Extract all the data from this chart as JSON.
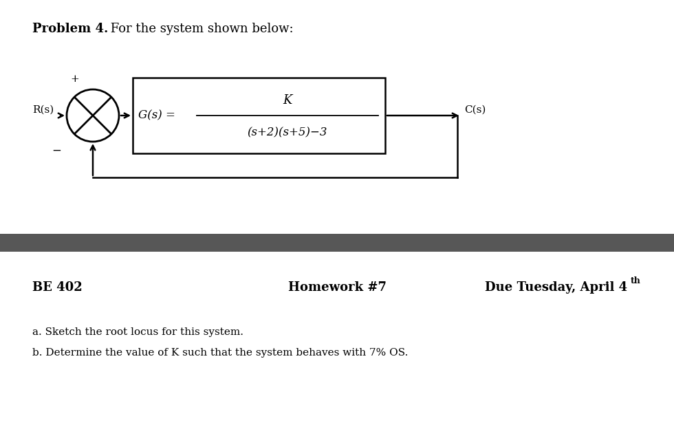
{
  "title_bold": "Problem 4.",
  "title_normal": " For the system shown below:",
  "title_fontsize": 13,
  "bg_color": "#ffffff",
  "separator_color": "#575757",
  "footer_left": "BE 402",
  "footer_center": "Homework #7",
  "footer_right_main": "Due Tuesday, April 4",
  "footer_right_super": "th",
  "footer_fontsize": 13,
  "body_a": "a. Sketch the root locus for this system.",
  "body_b": "b. Determine the value of K such that the system behaves with 7% OS.",
  "body_fontsize": 11,
  "block_label": "G(s) =",
  "block_numerator": "K",
  "block_denominator": "(s+2)(s+5)−3",
  "Rs_label": "R(s)",
  "Cs_label": "C(s)",
  "plus_label": "+",
  "minus_label": "−"
}
